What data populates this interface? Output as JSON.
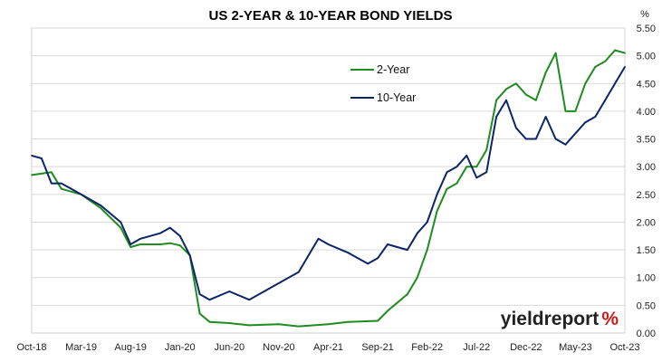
{
  "chart_data": {
    "type": "line",
    "title": "US 2-YEAR & 10-YEAR BOND YIELDS",
    "ylabel": "%",
    "ylim": [
      0,
      5.5
    ],
    "yticks": [
      "0.00",
      "0.50",
      "1.00",
      "1.50",
      "2.00",
      "2.50",
      "3.00",
      "3.50",
      "4.00",
      "4.50",
      "5.00",
      "5.50"
    ],
    "xticks": [
      "Oct-18",
      "Mar-19",
      "Aug-19",
      "Jan-20",
      "Jun-20",
      "Nov-20",
      "Apr-21",
      "Sep-21",
      "Feb-22",
      "Jul-22",
      "Dec-22",
      "May-23",
      "Oct-23"
    ],
    "grid": true,
    "legend_position": "top-center",
    "series": [
      {
        "name": "2-Year",
        "color": "#1e8c1e",
        "x": [
          "Oct-18",
          "Dec-18",
          "Jan-19",
          "Mar-19",
          "May-19",
          "Jul-19",
          "Aug-19",
          "Sep-19",
          "Nov-19",
          "Dec-19",
          "Jan-20",
          "Feb-20",
          "Mar-20",
          "Apr-20",
          "Jun-20",
          "Aug-20",
          "Nov-20",
          "Jan-21",
          "Apr-21",
          "Jun-21",
          "Sep-21",
          "Oct-21",
          "Nov-21",
          "Dec-21",
          "Jan-22",
          "Feb-22",
          "Mar-22",
          "Apr-22",
          "May-22",
          "Jun-22",
          "Jul-22",
          "Aug-22",
          "Sep-22",
          "Oct-22",
          "Nov-22",
          "Dec-22",
          "Jan-23",
          "Feb-23",
          "Mar-23",
          "Apr-23",
          "May-23",
          "Jun-23",
          "Jul-23",
          "Aug-23",
          "Sep-23",
          "Oct-23"
        ],
        "values": [
          2.85,
          2.9,
          2.6,
          2.5,
          2.25,
          1.9,
          1.55,
          1.6,
          1.6,
          1.62,
          1.58,
          1.4,
          0.35,
          0.2,
          0.18,
          0.14,
          0.16,
          0.12,
          0.16,
          0.2,
          0.22,
          0.4,
          0.55,
          0.7,
          1.0,
          1.5,
          2.2,
          2.6,
          2.7,
          3.0,
          3.0,
          3.3,
          4.2,
          4.4,
          4.5,
          4.3,
          4.2,
          4.7,
          5.05,
          4.0,
          4.0,
          4.5,
          4.8,
          4.9,
          5.1,
          5.05
        ]
      },
      {
        "name": "10-Year",
        "color": "#0c2566",
        "x": [
          "Oct-18",
          "Nov-18",
          "Dec-18",
          "Jan-19",
          "Mar-19",
          "May-19",
          "Jul-19",
          "Aug-19",
          "Sep-19",
          "Nov-19",
          "Dec-19",
          "Jan-20",
          "Feb-20",
          "Mar-20",
          "Apr-20",
          "Jun-20",
          "Aug-20",
          "Nov-20",
          "Jan-21",
          "Mar-21",
          "Apr-21",
          "Jun-21",
          "Aug-21",
          "Sep-21",
          "Oct-21",
          "Dec-21",
          "Jan-22",
          "Feb-22",
          "Mar-22",
          "Apr-22",
          "May-22",
          "Jun-22",
          "Jul-22",
          "Aug-22",
          "Sep-22",
          "Oct-22",
          "Nov-22",
          "Dec-22",
          "Jan-23",
          "Feb-23",
          "Mar-23",
          "Apr-23",
          "May-23",
          "Jun-23",
          "Jul-23",
          "Aug-23",
          "Sep-23",
          "Oct-23"
        ],
        "values": [
          3.2,
          3.15,
          2.7,
          2.7,
          2.5,
          2.3,
          2.0,
          1.6,
          1.7,
          1.8,
          1.9,
          1.75,
          1.4,
          0.7,
          0.6,
          0.75,
          0.6,
          0.9,
          1.1,
          1.7,
          1.6,
          1.45,
          1.25,
          1.35,
          1.6,
          1.5,
          1.8,
          2.0,
          2.5,
          2.9,
          3.0,
          3.2,
          2.8,
          2.9,
          3.9,
          4.2,
          3.7,
          3.5,
          3.5,
          3.9,
          3.5,
          3.4,
          3.6,
          3.8,
          3.9,
          4.2,
          4.5,
          4.8
        ]
      }
    ]
  },
  "brand": {
    "text_yield": "yield",
    "text_report": "report",
    "text_percent": "%",
    "color_dark": "#222222",
    "color_accent": "#cc1a1a"
  }
}
